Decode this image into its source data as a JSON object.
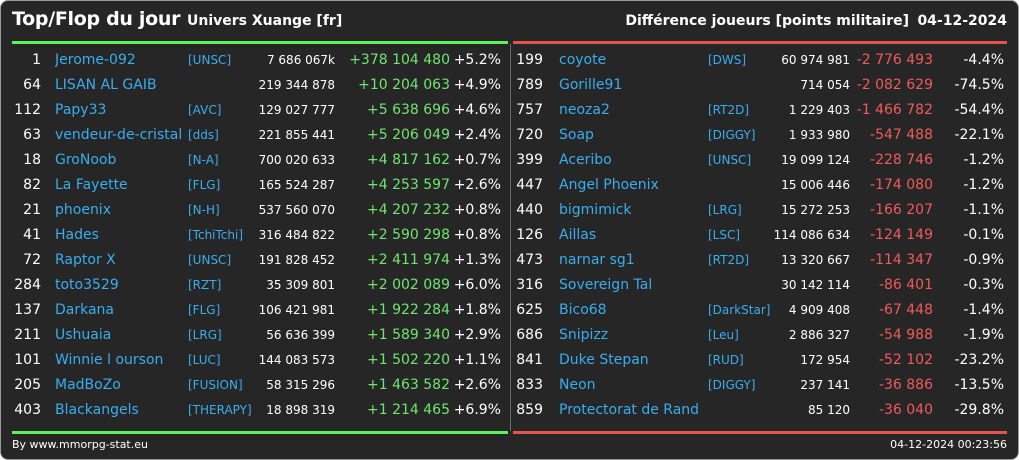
{
  "header": {
    "title": "Top/Flop du jour",
    "universe": "Univers Xuange [fr]",
    "subtitle": "Différence joueurs [points militaire]",
    "date": "04-12-2024"
  },
  "colors": {
    "background": "#262626",
    "top_accent": "#5cf25c",
    "flop_accent": "#e65151",
    "link": "#38aef0"
  },
  "top": [
    {
      "rank": "1",
      "name": "Jerome-092",
      "alliance": "[UNSC]",
      "points": "7 686 067k",
      "diff": "+378 104 480",
      "pct": "+5.2%"
    },
    {
      "rank": "64",
      "name": "LISAN AL GAIB",
      "alliance": "",
      "points": "219 344 878",
      "diff": "+10 204 063",
      "pct": "+4.9%"
    },
    {
      "rank": "112",
      "name": "Papy33",
      "alliance": "[AVC]",
      "points": "129 027 777",
      "diff": "+5 638 696",
      "pct": "+4.6%"
    },
    {
      "rank": "63",
      "name": "vendeur-de-cristal",
      "alliance": "[dds]",
      "points": "221 855 441",
      "diff": "+5 206 049",
      "pct": "+2.4%"
    },
    {
      "rank": "18",
      "name": "GroNoob",
      "alliance": "[N-A]",
      "points": "700 020 633",
      "diff": "+4 817 162",
      "pct": "+0.7%"
    },
    {
      "rank": "82",
      "name": "La Fayette",
      "alliance": "[FLG]",
      "points": "165 524 287",
      "diff": "+4 253 597",
      "pct": "+2.6%"
    },
    {
      "rank": "21",
      "name": "phoenix",
      "alliance": "[N-H]",
      "points": "537 560 070",
      "diff": "+4 207 232",
      "pct": "+0.8%"
    },
    {
      "rank": "41",
      "name": "Hades",
      "alliance": "[TchiTchi]",
      "points": "316 484 822",
      "diff": "+2 590 298",
      "pct": "+0.8%"
    },
    {
      "rank": "72",
      "name": "Raptor X",
      "alliance": "[UNSC]",
      "points": "191 828 452",
      "diff": "+2 411 974",
      "pct": "+1.3%"
    },
    {
      "rank": "284",
      "name": "toto3529",
      "alliance": "[RZT]",
      "points": "35 309 801",
      "diff": "+2 002 089",
      "pct": "+6.0%"
    },
    {
      "rank": "137",
      "name": "Darkana",
      "alliance": "[FLG]",
      "points": "106 421 981",
      "diff": "+1 922 284",
      "pct": "+1.8%"
    },
    {
      "rank": "211",
      "name": "Ushuaia",
      "alliance": "[LRG]",
      "points": "56 636 399",
      "diff": "+1 589 340",
      "pct": "+2.9%"
    },
    {
      "rank": "101",
      "name": "Winnie l ourson",
      "alliance": "[LUC]",
      "points": "144 083 573",
      "diff": "+1 502 220",
      "pct": "+1.1%"
    },
    {
      "rank": "205",
      "name": "MadBoZo",
      "alliance": "[FUSION]",
      "points": "58 315 296",
      "diff": "+1 463 582",
      "pct": "+2.6%"
    },
    {
      "rank": "403",
      "name": "Blackangels",
      "alliance": "[THERAPY]",
      "points": "18 898 319",
      "diff": "+1 214 465",
      "pct": "+6.9%"
    }
  ],
  "flop": [
    {
      "rank": "199",
      "name": "coyote",
      "alliance": "[DWS]",
      "points": "60 974 981",
      "diff": "-2 776 493",
      "pct": "-4.4%"
    },
    {
      "rank": "789",
      "name": "Gorille91",
      "alliance": "",
      "points": "714 054",
      "diff": "-2 082 629",
      "pct": "-74.5%"
    },
    {
      "rank": "757",
      "name": "neoza2",
      "alliance": "[RT2D]",
      "points": "1 229 403",
      "diff": "-1 466 782",
      "pct": "-54.4%"
    },
    {
      "rank": "720",
      "name": "Soap",
      "alliance": "[DIGGY]",
      "points": "1 933 980",
      "diff": "-547 488",
      "pct": "-22.1%"
    },
    {
      "rank": "399",
      "name": "Aceribo",
      "alliance": "[UNSC]",
      "points": "19 099 124",
      "diff": "-228 746",
      "pct": "-1.2%"
    },
    {
      "rank": "447",
      "name": "Angel Phoenix",
      "alliance": "",
      "points": "15 006 446",
      "diff": "-174 080",
      "pct": "-1.2%"
    },
    {
      "rank": "440",
      "name": "bigmimick",
      "alliance": "[LRG]",
      "points": "15 272 253",
      "diff": "-166 207",
      "pct": "-1.1%"
    },
    {
      "rank": "126",
      "name": "Aillas",
      "alliance": "[LSC]",
      "points": "114 086 634",
      "diff": "-124 149",
      "pct": "-0.1%"
    },
    {
      "rank": "473",
      "name": "narnar sg1",
      "alliance": "[RT2D]",
      "points": "13 320 667",
      "diff": "-114 347",
      "pct": "-0.9%"
    },
    {
      "rank": "316",
      "name": "Sovereign Tal",
      "alliance": "",
      "points": "30 142 114",
      "diff": "-86 401",
      "pct": "-0.3%"
    },
    {
      "rank": "625",
      "name": "Bico68",
      "alliance": "[DarkStar]",
      "points": "4 909 408",
      "diff": "-67 448",
      "pct": "-1.4%"
    },
    {
      "rank": "686",
      "name": "Snipizz",
      "alliance": "[Leu]",
      "points": "2 886 327",
      "diff": "-54 988",
      "pct": "-1.9%"
    },
    {
      "rank": "841",
      "name": "Duke Stepan",
      "alliance": "[RUD]",
      "points": "172 954",
      "diff": "-52 102",
      "pct": "-23.2%"
    },
    {
      "rank": "833",
      "name": "Neon",
      "alliance": "[DIGGY]",
      "points": "237 141",
      "diff": "-36 886",
      "pct": "-13.5%"
    },
    {
      "rank": "859",
      "name": "Protectorat de Rand",
      "alliance": "",
      "points": "85 120",
      "diff": "-36 040",
      "pct": "-29.8%"
    }
  ],
  "footer": {
    "credit": "By www.mmorpg-stat.eu",
    "timestamp": "04-12-2024 00:23:56"
  }
}
